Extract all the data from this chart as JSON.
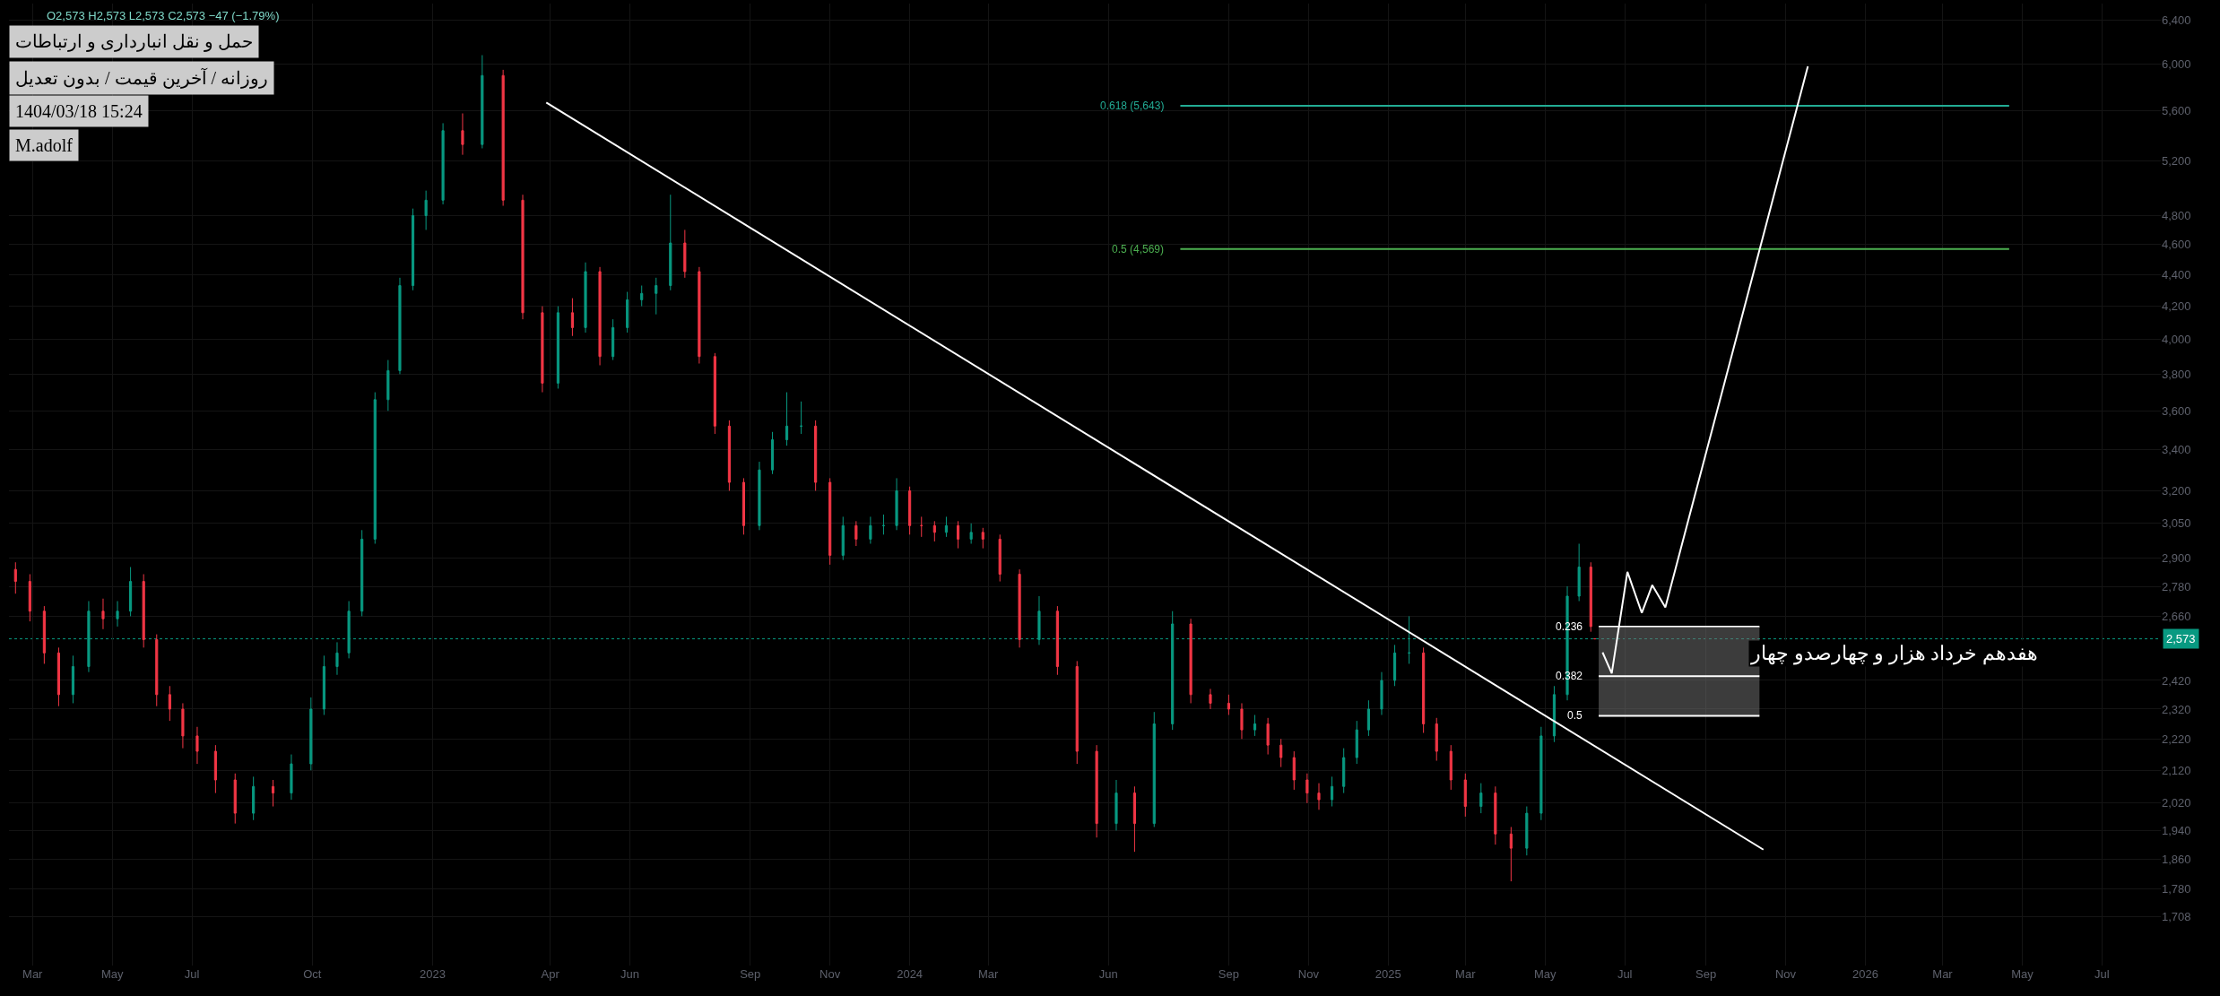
{
  "chart_data": {
    "type": "candlestick",
    "title": "حمل و نقل انبارداری و ارتباطات",
    "subtitle": "روزانه / آخرین قیمت / بدون تعدیل",
    "annotations": [
      "O2,573 H2,573 L2,573 C2,573 −47 (−1.79%)",
      "1404/03/18 15:24",
      "M.adolf",
      "هفدهم خرداد هزار و چهارصدو چهار",
      {
        "text": "0.618 (5,643)",
        "x": "2024-07-26",
        "y": 5643
      },
      {
        "text": "0.5 (4,569)",
        "x": "2024-07-26",
        "y": 4569
      },
      {
        "text": "0.236",
        "x": "2025-06-11",
        "y": 2620
      },
      {
        "text": "0.382",
        "x": "2025-06-11",
        "y": 2435
      },
      {
        "text": "0.5",
        "x": "2025-06-11",
        "y": 2297
      }
    ],
    "x": [
      "2022-02-16",
      "2022-02-27",
      "2022-03-10",
      "2022-03-21",
      "2022-04-01",
      "2022-04-13",
      "2022-04-24",
      "2022-05-05",
      "2022-05-15",
      "2022-05-25",
      "2022-06-04",
      "2022-06-14",
      "2022-06-24",
      "2022-07-05",
      "2022-07-19",
      "2022-08-03",
      "2022-08-17",
      "2022-09-01",
      "2022-09-15",
      "2022-09-30",
      "2022-10-10",
      "2022-10-20",
      "2022-10-29",
      "2022-11-08",
      "2022-11-18",
      "2022-11-28",
      "2022-12-07",
      "2022-12-17",
      "2022-12-27",
      "2023-01-09",
      "2023-01-24",
      "2023-02-08",
      "2023-02-24",
      "2023-03-11",
      "2023-03-26",
      "2023-04-07",
      "2023-04-18",
      "2023-04-28",
      "2023-05-09",
      "2023-05-19",
      "2023-05-30",
      "2023-06-10",
      "2023-06-21",
      "2023-07-02",
      "2023-07-13",
      "2023-07-24",
      "2023-08-05",
      "2023-08-16",
      "2023-08-27",
      "2023-09-08",
      "2023-09-18",
      "2023-09-29",
      "2023-10-10",
      "2023-10-21",
      "2023-11-01",
      "2023-11-11",
      "2023-11-21",
      "2023-12-02",
      "2023-12-12",
      "2023-12-22",
      "2024-01-01",
      "2024-01-10",
      "2024-01-20",
      "2024-01-29",
      "2024-02-07",
      "2024-02-17",
      "2024-02-26",
      "2024-03-10",
      "2024-03-25",
      "2024-04-09",
      "2024-04-23",
      "2024-05-08",
      "2024-05-23",
      "2024-06-07",
      "2024-06-21",
      "2024-07-06",
      "2024-07-20",
      "2024-08-03",
      "2024-08-18",
      "2024-09-01",
      "2024-09-11",
      "2024-09-21",
      "2024-10-01",
      "2024-10-11",
      "2024-10-21",
      "2024-10-31",
      "2024-11-09",
      "2024-11-19",
      "2024-11-28",
      "2024-12-08",
      "2024-12-17",
      "2024-12-27",
      "2025-01-06",
      "2025-01-17",
      "2025-01-28",
      "2025-02-07",
      "2025-02-18",
      "2025-03-01",
      "2025-03-13",
      "2025-03-24",
      "2025-04-05",
      "2025-04-17",
      "2025-04-28",
      "2025-05-08",
      "2025-05-18",
      "2025-05-27",
      "2025-06-05",
      "2025-06-08"
    ],
    "ohlc": [
      [
        2850,
        2880,
        2750,
        2800
      ],
      [
        2800,
        2830,
        2640,
        2680
      ],
      [
        2680,
        2700,
        2480,
        2520
      ],
      [
        2520,
        2540,
        2330,
        2370
      ],
      [
        2370,
        2510,
        2340,
        2470
      ],
      [
        2470,
        2720,
        2450,
        2680
      ],
      [
        2680,
        2730,
        2610,
        2650
      ],
      [
        2650,
        2720,
        2620,
        2680
      ],
      [
        2680,
        2860,
        2660,
        2800
      ],
      [
        2800,
        2830,
        2540,
        2570
      ],
      [
        2570,
        2590,
        2330,
        2370
      ],
      [
        2370,
        2400,
        2280,
        2320
      ],
      [
        2320,
        2340,
        2190,
        2230
      ],
      [
        2230,
        2260,
        2140,
        2180
      ],
      [
        2180,
        2200,
        2050,
        2090
      ],
      [
        2090,
        2110,
        1960,
        1990
      ],
      [
        1990,
        2100,
        1970,
        2070
      ],
      [
        2070,
        2090,
        2010,
        2050
      ],
      [
        2050,
        2170,
        2030,
        2140
      ],
      [
        2140,
        2360,
        2120,
        2320
      ],
      [
        2320,
        2510,
        2300,
        2470
      ],
      [
        2470,
        2560,
        2440,
        2520
      ],
      [
        2520,
        2720,
        2500,
        2680
      ],
      [
        2680,
        3020,
        2660,
        2980
      ],
      [
        2980,
        3700,
        2960,
        3660
      ],
      [
        3660,
        3880,
        3600,
        3820
      ],
      [
        3820,
        4380,
        3800,
        4330
      ],
      [
        4330,
        4850,
        4300,
        4800
      ],
      [
        4800,
        4980,
        4700,
        4910
      ],
      [
        4910,
        5500,
        4880,
        5440
      ],
      [
        5440,
        5580,
        5250,
        5330
      ],
      [
        5330,
        6080,
        5300,
        5900
      ],
      [
        5900,
        5950,
        4870,
        4910
      ],
      [
        4910,
        4950,
        4120,
        4160
      ],
      [
        4160,
        4200,
        3700,
        3750
      ],
      [
        3750,
        4200,
        3720,
        4160
      ],
      [
        4160,
        4250,
        4020,
        4070
      ],
      [
        4070,
        4480,
        4040,
        4420
      ],
      [
        4420,
        4450,
        3850,
        3900
      ],
      [
        3900,
        4120,
        3880,
        4070
      ],
      [
        4070,
        4290,
        4040,
        4240
      ],
      [
        4240,
        4330,
        4200,
        4280
      ],
      [
        4280,
        4380,
        4150,
        4330
      ],
      [
        4330,
        4950,
        4300,
        4610
      ],
      [
        4610,
        4700,
        4380,
        4420
      ],
      [
        4420,
        4450,
        3860,
        3900
      ],
      [
        3900,
        3920,
        3480,
        3520
      ],
      [
        3520,
        3550,
        3200,
        3240
      ],
      [
        3240,
        3260,
        3000,
        3040
      ],
      [
        3040,
        3340,
        3020,
        3300
      ],
      [
        3300,
        3490,
        3280,
        3450
      ],
      [
        3450,
        3700,
        3420,
        3520
      ],
      [
        3520,
        3650,
        3480,
        3520
      ],
      [
        3520,
        3550,
        3200,
        3240
      ],
      [
        3240,
        3260,
        2870,
        2910
      ],
      [
        2910,
        3080,
        2890,
        3040
      ],
      [
        3040,
        3060,
        2950,
        2980
      ],
      [
        2980,
        3080,
        2960,
        3040
      ],
      [
        3040,
        3090,
        3000,
        3040
      ],
      [
        3040,
        3260,
        3020,
        3200
      ],
      [
        3200,
        3220,
        3000,
        3040
      ],
      [
        3040,
        3080,
        2990,
        3040
      ],
      [
        3040,
        3060,
        2970,
        3010
      ],
      [
        3010,
        3080,
        2990,
        3040
      ],
      [
        3040,
        3060,
        2940,
        2980
      ],
      [
        2980,
        3050,
        2960,
        3010
      ],
      [
        3010,
        3030,
        2940,
        2980
      ],
      [
        2980,
        3000,
        2800,
        2830
      ],
      [
        2830,
        2850,
        2540,
        2570
      ],
      [
        2570,
        2740,
        2550,
        2680
      ],
      [
        2680,
        2700,
        2440,
        2470
      ],
      [
        2470,
        2490,
        2140,
        2180
      ],
      [
        2180,
        2200,
        1920,
        1960
      ],
      [
        1960,
        2090,
        1940,
        2050
      ],
      [
        2050,
        2070,
        1880,
        1960
      ],
      [
        1960,
        2310,
        1950,
        2270
      ],
      [
        2270,
        2680,
        2250,
        2630
      ],
      [
        2630,
        2650,
        2340,
        2370
      ],
      [
        2370,
        2390,
        2320,
        2340
      ],
      [
        2340,
        2370,
        2300,
        2320
      ],
      [
        2320,
        2340,
        2220,
        2250
      ],
      [
        2250,
        2300,
        2230,
        2270
      ],
      [
        2270,
        2290,
        2170,
        2200
      ],
      [
        2200,
        2220,
        2130,
        2160
      ],
      [
        2160,
        2180,
        2060,
        2090
      ],
      [
        2090,
        2110,
        2020,
        2050
      ],
      [
        2050,
        2080,
        2000,
        2030
      ],
      [
        2030,
        2100,
        2010,
        2070
      ],
      [
        2070,
        2190,
        2050,
        2160
      ],
      [
        2160,
        2280,
        2140,
        2250
      ],
      [
        2250,
        2350,
        2230,
        2320
      ],
      [
        2320,
        2450,
        2300,
        2420
      ],
      [
        2420,
        2550,
        2400,
        2520
      ],
      [
        2520,
        2660,
        2480,
        2520
      ],
      [
        2520,
        2540,
        2240,
        2270
      ],
      [
        2270,
        2290,
        2150,
        2180
      ],
      [
        2180,
        2200,
        2060,
        2090
      ],
      [
        2090,
        2110,
        1980,
        2010
      ],
      [
        2010,
        2080,
        1990,
        2050
      ],
      [
        2050,
        2070,
        1900,
        1930
      ],
      [
        1930,
        1950,
        1800,
        1890
      ],
      [
        1890,
        2010,
        1870,
        1990
      ],
      [
        1990,
        2260,
        1970,
        2230
      ],
      [
        2230,
        2400,
        2210,
        2370
      ],
      [
        2370,
        2780,
        2350,
        2740
      ],
      [
        2740,
        2960,
        2720,
        2860
      ],
      [
        2860,
        2880,
        2600,
        2620
      ],
      [
        2573,
        2573,
        2573,
        2573
      ]
    ],
    "series": [
      {
        "type": "line",
        "x": [
          "2023-03-29",
          "2025-10-15"
        ],
        "values": [
          5670,
          1886
        ],
        "color": "#ffffff"
      },
      {
        "type": "line",
        "x": [
          "2024-07-26",
          "2026-04-21"
        ],
        "values": [
          5643,
          5643
        ],
        "color": "#22ab94"
      },
      {
        "type": "line",
        "x": [
          "2024-07-26",
          "2026-04-21"
        ],
        "values": [
          4569,
          4569
        ],
        "color": "#4caf50"
      },
      {
        "type": "line",
        "x": [
          "2025-06-11",
          "2025-10-12"
        ],
        "values": [
          2620,
          2620
        ],
        "color": "#ffffff"
      },
      {
        "type": "line",
        "x": [
          "2025-06-11",
          "2025-10-12"
        ],
        "values": [
          2435,
          2435
        ],
        "lower": [
          2297,
          2297
        ],
        "upper": [
          2620,
          2620
        ],
        "color": "#ffffff"
      },
      {
        "type": "line",
        "x": [
          "2025-06-11",
          "2025-10-12"
        ],
        "values": [
          2297,
          2297
        ],
        "color": "#ffffff"
      },
      {
        "type": "line",
        "x": [
          "2025-06-14",
          "2025-06-21",
          "2025-07-03",
          "2025-07-14",
          "2025-07-22",
          "2025-08-01",
          "2025-11-18"
        ],
        "values": [
          2522,
          2445,
          2840,
          2673,
          2785,
          2695,
          5980
        ],
        "color": "#ffffff"
      }
    ],
    "ref_lines": [
      {
        "axis": "y",
        "value": 2573,
        "label": "2,573",
        "color": "#089981",
        "line_style": "dotted"
      }
    ],
    "xlim": [
      "2022-02-11",
      "2026-08-15"
    ],
    "xticks": [
      {
        "value": "2022-03-01",
        "label": "Mar"
      },
      {
        "value": "2022-05-01",
        "label": "May"
      },
      {
        "value": "2022-07-01",
        "label": "Jul"
      },
      {
        "value": "2022-10-01",
        "label": "Oct"
      },
      {
        "value": "2023-01-01",
        "label": "2023"
      },
      {
        "value": "2023-04-01",
        "label": "Apr"
      },
      {
        "value": "2023-06-01",
        "label": "Jun"
      },
      {
        "value": "2023-09-01",
        "label": "Sep"
      },
      {
        "value": "2023-11-01",
        "label": "Nov"
      },
      {
        "value": "2024-01-01",
        "label": "2024"
      },
      {
        "value": "2024-03-01",
        "label": "Mar"
      },
      {
        "value": "2024-06-01",
        "label": "Jun"
      },
      {
        "value": "2024-09-01",
        "label": "Sep"
      },
      {
        "value": "2024-11-01",
        "label": "Nov"
      },
      {
        "value": "2025-01-01",
        "label": "2025"
      },
      {
        "value": "2025-03-01",
        "label": "Mar"
      },
      {
        "value": "2025-05-01",
        "label": "May"
      },
      {
        "value": "2025-07-01",
        "label": "Jul"
      },
      {
        "value": "2025-09-01",
        "label": "Sep"
      },
      {
        "value": "2025-11-01",
        "label": "Nov"
      },
      {
        "value": "2026-01-01",
        "label": "2026"
      },
      {
        "value": "2026-03-01",
        "label": "Mar"
      },
      {
        "value": "2026-05-01",
        "label": "May"
      },
      {
        "value": "2026-07-01",
        "label": "Jul"
      }
    ],
    "ylim": [
      1590,
      6560
    ],
    "yticks": [
      {
        "value": 1708,
        "label": "1,708"
      },
      {
        "value": 1780,
        "label": "1,780"
      },
      {
        "value": 1860,
        "label": "1,860"
      },
      {
        "value": 1940,
        "label": "1,940"
      },
      {
        "value": 2020,
        "label": "2,020"
      },
      {
        "value": 2120,
        "label": "2,120"
      },
      {
        "value": 2220,
        "label": "2,220"
      },
      {
        "value": 2320,
        "label": "2,320"
      },
      {
        "value": 2420,
        "label": "2,420"
      },
      {
        "value": 2660,
        "label": "2,660"
      },
      {
        "value": 2780,
        "label": "2,780"
      },
      {
        "value": 2900,
        "label": "2,900"
      },
      {
        "value": 3050,
        "label": "3,050"
      },
      {
        "value": 3200,
        "label": "3,200"
      },
      {
        "value": 3400,
        "label": "3,400"
      },
      {
        "value": 3600,
        "label": "3,600"
      },
      {
        "value": 3800,
        "label": "3,800"
      },
      {
        "value": 4000,
        "label": "4,000"
      },
      {
        "value": 4200,
        "label": "4,200"
      },
      {
        "value": 4400,
        "label": "4,400"
      },
      {
        "value": 4600,
        "label": "4,600"
      },
      {
        "value": 4800,
        "label": "4,800"
      },
      {
        "value": 5200,
        "label": "5,200"
      },
      {
        "value": 5600,
        "label": "5,600"
      },
      {
        "value": 6000,
        "label": "6,000"
      },
      {
        "value": 6400,
        "label": "6,400"
      }
    ],
    "log": "y",
    "grid": true,
    "marker": "none",
    "line_style": "solid"
  }
}
